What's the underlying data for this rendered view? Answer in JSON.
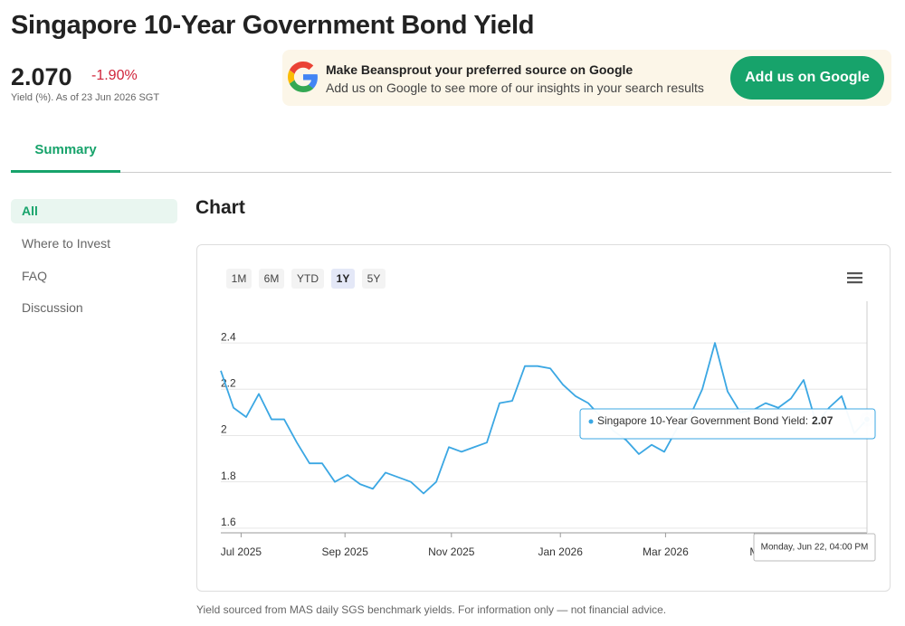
{
  "header": {
    "title": "Singapore 10-Year Government Bond Yield",
    "price": "2.070",
    "change": "-1.90%",
    "subtitle": "Yield (%). As of 23 Jun 2026 SGT"
  },
  "banner": {
    "heading": "Make Beansprout your preferred source on Google",
    "text": "Add us on Google to see more of our insights in your search results",
    "button": "Add us on Google"
  },
  "tabs": [
    "Summary"
  ],
  "sidebar": [
    "All",
    "Where to Invest",
    "FAQ",
    "Discussion"
  ],
  "section_title": "Chart",
  "range_buttons": [
    "1M",
    "6M",
    "YTD",
    "1Y",
    "5Y"
  ],
  "active_range": 3,
  "chart_data": {
    "type": "line",
    "series": [
      {
        "name": "Singapore 10-Year Government Bond Yield",
        "color": "#3ba7e3",
        "values": [
          2.28,
          2.12,
          2.08,
          2.18,
          2.07,
          2.07,
          1.97,
          1.88,
          1.88,
          1.8,
          1.83,
          1.79,
          1.77,
          1.84,
          1.82,
          1.8,
          1.75,
          1.8,
          1.95,
          1.93,
          1.95,
          1.97,
          2.14,
          2.15,
          2.3,
          2.3,
          2.29,
          2.22,
          2.17,
          2.14,
          2.08,
          2.02,
          1.98,
          1.92,
          1.96,
          1.93,
          2.03,
          2.08,
          2.2,
          2.4,
          2.19,
          2.1,
          2.11,
          2.14,
          2.12,
          2.16,
          2.24,
          2.05,
          2.12,
          2.17,
          2.01,
          2.07
        ]
      }
    ],
    "xlim": [
      0,
      51
    ],
    "xticks": [
      {
        "value": 1.6,
        "label": "Jul 2025"
      },
      {
        "value": 9.8,
        "label": "Sep 2025"
      },
      {
        "value": 18.2,
        "label": "Nov 2025"
      },
      {
        "value": 26.8,
        "label": "Jan 2026"
      },
      {
        "value": 35.1,
        "label": "Mar 2026"
      },
      {
        "value": 42.1,
        "label": "M"
      }
    ],
    "ylim": [
      1.58,
      2.58
    ],
    "yticks": [
      1.6,
      1.8,
      2,
      2.2,
      2.4
    ],
    "grid": true,
    "tooltip": {
      "label": "Singapore 10-Year Government Bond Yield:",
      "date": "Monday, Jun 22, 04:00 PM"
    }
  },
  "footnote": "Yield sourced from MAS daily SGS benchmark yields. For information only — not financial advice."
}
